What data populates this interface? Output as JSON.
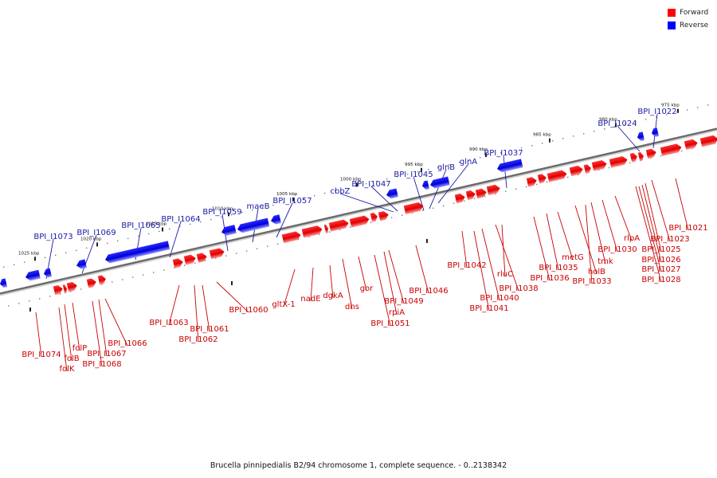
{
  "legend": [
    {
      "label": "Forward",
      "color": "#ff0000"
    },
    {
      "label": "Reverse",
      "color": "#0000ff"
    }
  ],
  "caption": "Brucella pinnipedialis B2/94 chromosome 1, complete sequence. - 0..2138342",
  "ruler_labels": [
    "1025 kbp",
    "1020 kbp",
    "1015 kbp",
    "1010 kbp",
    "1005 kbp",
    "1000 kbp",
    "995 kbp",
    "990 kbp",
    "985 kbp",
    "980 kbp",
    "975 kbp"
  ],
  "forward_genes": [
    "BPI_I1074",
    "folK",
    "folB",
    "folP",
    "BPI_I1068",
    "BPI_I1067",
    "BPI_I1066",
    "BPI_I1063",
    "BPI_I1062",
    "BPI_I1061",
    "BPI_I1060",
    "gltX-1",
    "nadE",
    "dgkA",
    "dhs",
    "gor",
    "BPI_I1051",
    "rpiA",
    "BPI_I1049",
    "BPI_I1046",
    "BPI_I1042",
    "BPI_I1041",
    "BPI_I1040",
    "BPI_I1038",
    "rluC",
    "BPI_I1036",
    "BPI_I1035",
    "metG",
    "holB",
    "BPI_I1033",
    "tmk",
    "BPI_I1030",
    "rlpA",
    "BPI_I1028",
    "BPI_I1027",
    "BPI_I1026",
    "BPI_I1025",
    "BPI_I1023",
    "BPI_I1021"
  ],
  "reverse_genes": [
    "BPI_I1073",
    "BPI_I1069",
    "BPI_I1065",
    "BPI_I1064",
    "BPI_I1059",
    "maeB",
    "BPI_I1057",
    "cbbZ",
    "BPI_I1047",
    "BPI_I1045",
    "glnB",
    "glnA",
    "BPI_I1037",
    "BPI_I1024",
    "BPI_I1022"
  ]
}
